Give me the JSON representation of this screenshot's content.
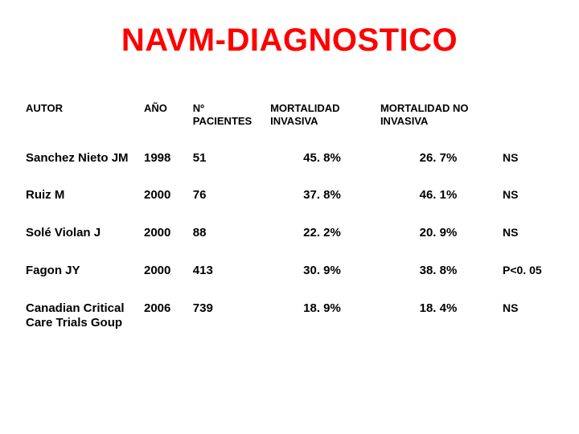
{
  "title": "NAVM-DIAGNOSTICO",
  "columns": {
    "autor": "AUTOR",
    "anio": "AÑO",
    "npac": "Nº PACIENTES",
    "minv": "MORTALIDAD INVASIVA",
    "mninv": "MORTALIDAD NO INVASIVA",
    "sig": ""
  },
  "rows": [
    {
      "autor": "Sanchez Nieto JM",
      "anio": "1998",
      "npac": "51",
      "minv": "45. 8%",
      "mninv": "26. 7%",
      "sig": "NS"
    },
    {
      "autor": "Ruiz M",
      "anio": "2000",
      "npac": "76",
      "minv": "37. 8%",
      "mninv": "46. 1%",
      "sig": "NS"
    },
    {
      "autor": "Solé Violan J",
      "anio": "2000",
      "npac": "88",
      "minv": "22. 2%",
      "mninv": "20. 9%",
      "sig": "NS"
    },
    {
      "autor": "Fagon JY",
      "anio": "2000",
      "npac": "413",
      "minv": "30. 9%",
      "mninv": "38. 8%",
      "sig": "P<0. 05"
    },
    {
      "autor": "Canadian Critical Care Trials Goup",
      "anio": "2006",
      "npac": "739",
      "minv": "18. 9%",
      "mninv": "18. 4%",
      "sig": "NS"
    }
  ],
  "colors": {
    "title": "#ff0000",
    "text": "#000000",
    "background": "#ffffff"
  }
}
